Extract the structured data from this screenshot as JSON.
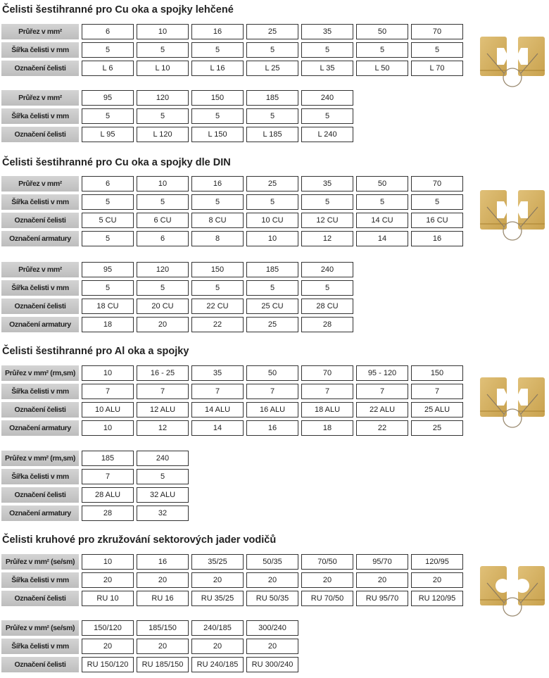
{
  "sections": [
    {
      "title": "Čelisti šestihranné pro Cu oka a spojky lehčené",
      "image": "hexagonal-crimp-die-image",
      "blocks": [
        [
          {
            "label": "Průřez v mm²",
            "values": [
              "6",
              "10",
              "16",
              "25",
              "35",
              "50",
              "70"
            ]
          },
          {
            "label": "Šířka čelisti v mm",
            "values": [
              "5",
              "5",
              "5",
              "5",
              "5",
              "5",
              "5"
            ]
          },
          {
            "label": "Označení čelisti",
            "values": [
              "L 6",
              "L 10",
              "L 16",
              "L 25",
              "L 35",
              "L 50",
              "L 70"
            ]
          }
        ],
        [
          {
            "label": "Průřez v mm²",
            "values": [
              "95",
              "120",
              "150",
              "185",
              "240"
            ]
          },
          {
            "label": "Šířka čelisti v mm",
            "values": [
              "5",
              "5",
              "5",
              "5",
              "5"
            ]
          },
          {
            "label": "Označení čelisti",
            "values": [
              "L 95",
              "L 120",
              "L 150",
              "L 185",
              "L 240"
            ]
          }
        ]
      ]
    },
    {
      "title": "Čelisti šestihranné pro Cu oka a spojky dle DIN",
      "image": "hexagonal-crimp-die-image",
      "blocks": [
        [
          {
            "label": "Průřez v mm²",
            "values": [
              "6",
              "10",
              "16",
              "25",
              "35",
              "50",
              "70"
            ]
          },
          {
            "label": "Šířka čelisti v mm",
            "values": [
              "5",
              "5",
              "5",
              "5",
              "5",
              "5",
              "5"
            ]
          },
          {
            "label": "Označení čelisti",
            "values": [
              "5 CU",
              "6 CU",
              "8 CU",
              "10 CU",
              "12 CU",
              "14 CU",
              "16 CU"
            ]
          },
          {
            "label": "Označení armatury",
            "values": [
              "5",
              "6",
              "8",
              "10",
              "12",
              "14",
              "16"
            ]
          }
        ],
        [
          {
            "label": "Průřez v mm²",
            "values": [
              "95",
              "120",
              "150",
              "185",
              "240"
            ]
          },
          {
            "label": "Šířka čelisti v mm",
            "values": [
              "5",
              "5",
              "5",
              "5",
              "5"
            ]
          },
          {
            "label": "Označení čelisti",
            "values": [
              "18 CU",
              "20 CU",
              "22 CU",
              "25 CU",
              "28 CU"
            ]
          },
          {
            "label": "Označení armatury",
            "values": [
              "18",
              "20",
              "22",
              "25",
              "28"
            ]
          }
        ]
      ]
    },
    {
      "title": "Čelisti šestihranné pro Al oka a spojky",
      "image": "hexagonal-crimp-die-image",
      "blocks": [
        [
          {
            "label": "Průřez v mm² (rm,sm)",
            "values": [
              "10",
              "16 - 25",
              "35",
              "50",
              "70",
              "95 - 120",
              "150"
            ]
          },
          {
            "label": "Šířka čelisti v mm",
            "values": [
              "7",
              "7",
              "7",
              "7",
              "7",
              "7",
              "7"
            ]
          },
          {
            "label": "Označení čelisti",
            "values": [
              "10 ALU",
              "12 ALU",
              "14 ALU",
              "16 ALU",
              "18 ALU",
              "22 ALU",
              "25 ALU"
            ]
          },
          {
            "label": "Označení armatury",
            "values": [
              "10",
              "12",
              "14",
              "16",
              "18",
              "22",
              "25"
            ]
          }
        ],
        [
          {
            "label": "Průřez v mm² (rm,sm)",
            "values": [
              "185",
              "240"
            ]
          },
          {
            "label": "Šířka čelisti v mm",
            "values": [
              "7",
              "5"
            ]
          },
          {
            "label": "Označení čelisti",
            "values": [
              "28 ALU",
              "32 ALU"
            ]
          },
          {
            "label": "Označení armatury",
            "values": [
              "28",
              "32"
            ]
          }
        ]
      ]
    },
    {
      "title": "Čelisti kruhové pro zkružování sektorových jader vodičů",
      "image": "round-crimp-die-image",
      "blocks": [
        [
          {
            "label": "Průřez v mm² (se/sm)",
            "values": [
              "10",
              "16",
              "35/25",
              "50/35",
              "70/50",
              "95/70",
              "120/95"
            ]
          },
          {
            "label": "Šířka čelisti v mm",
            "values": [
              "20",
              "20",
              "20",
              "20",
              "20",
              "20",
              "20"
            ]
          },
          {
            "label": "Označení čelisti",
            "values": [
              "RU 10",
              "RU 16",
              "RU 35/25",
              "RU 50/35",
              "RU 70/50",
              "RU 95/70",
              "RU 120/95"
            ]
          }
        ],
        [
          {
            "label": "Průřez v mm² (se/sm)",
            "values": [
              "150/120",
              "185/150",
              "240/185",
              "300/240"
            ]
          },
          {
            "label": "Šířka čelisti v mm",
            "values": [
              "20",
              "20",
              "20",
              "20"
            ]
          },
          {
            "label": "Označení čelisti",
            "values": [
              "RU 150/120",
              "RU 185/150",
              "RU 240/185",
              "RU 300/240"
            ]
          }
        ]
      ]
    }
  ],
  "colors": {
    "label_bg": "#c8c8c8",
    "die_gold": "#c9a24e"
  }
}
